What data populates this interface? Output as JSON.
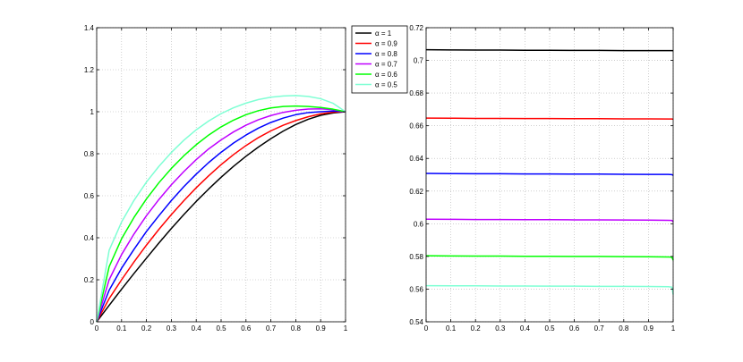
{
  "chart_data": [
    {
      "type": "line",
      "xlim": [
        0,
        1
      ],
      "ylim": [
        0,
        1.4
      ],
      "xticks": [
        "0",
        "0.1",
        "0.2",
        "0.3",
        "0.4",
        "0.5",
        "0.6",
        "0.7",
        "0.8",
        "0.9",
        "1"
      ],
      "yticks": [
        "0",
        "0.2",
        "0.4",
        "0.6",
        "0.8",
        "1",
        "1.2",
        "1.4"
      ],
      "grid": true,
      "x": [
        0,
        0.05,
        0.1,
        0.15,
        0.2,
        0.25,
        0.3,
        0.35,
        0.4,
        0.45,
        0.5,
        0.55,
        0.6,
        0.65,
        0.7,
        0.75,
        0.8,
        0.85,
        0.9,
        0.95,
        1
      ],
      "series": [
        {
          "name": "α = 1",
          "color": "#000000",
          "values": [
            0,
            0.078,
            0.155,
            0.23,
            0.303,
            0.375,
            0.444,
            0.51,
            0.573,
            0.632,
            0.688,
            0.74,
            0.788,
            0.832,
            0.872,
            0.908,
            0.939,
            0.964,
            0.983,
            0.994,
            1.0
          ]
        },
        {
          "name": "α = 0.9",
          "color": "#ff0000",
          "values": [
            0,
            0.11,
            0.2,
            0.285,
            0.365,
            0.44,
            0.51,
            0.576,
            0.638,
            0.695,
            0.748,
            0.796,
            0.839,
            0.877,
            0.909,
            0.936,
            0.958,
            0.976,
            0.99,
            0.998,
            1.0
          ]
        },
        {
          "name": "α = 0.8",
          "color": "#0000ff",
          "values": [
            0,
            0.15,
            0.255,
            0.345,
            0.43,
            0.505,
            0.577,
            0.643,
            0.703,
            0.758,
            0.807,
            0.851,
            0.889,
            0.922,
            0.949,
            0.97,
            0.986,
            0.996,
            1.0,
            1.003,
            1.0
          ]
        },
        {
          "name": "α = 0.7",
          "color": "#bf00ff",
          "values": [
            0,
            0.2,
            0.32,
            0.418,
            0.505,
            0.582,
            0.652,
            0.715,
            0.772,
            0.823,
            0.866,
            0.904,
            0.936,
            0.962,
            0.982,
            0.997,
            1.007,
            1.013,
            1.014,
            1.01,
            1.0
          ]
        },
        {
          "name": "α = 0.6",
          "color": "#00ff00",
          "values": [
            0,
            0.262,
            0.395,
            0.497,
            0.585,
            0.662,
            0.73,
            0.79,
            0.843,
            0.889,
            0.928,
            0.96,
            0.986,
            1.005,
            1.018,
            1.025,
            1.027,
            1.025,
            1.02,
            1.012,
            1.0
          ]
        },
        {
          "name": "α = 0.5",
          "color": "#7fffd4",
          "values": [
            0,
            0.34,
            0.475,
            0.578,
            0.665,
            0.74,
            0.806,
            0.864,
            0.914,
            0.956,
            0.991,
            1.019,
            1.041,
            1.058,
            1.069,
            1.075,
            1.077,
            1.073,
            1.062,
            1.04,
            1.0
          ]
        }
      ],
      "legend_position": "top-right"
    },
    {
      "type": "line",
      "xlim": [
        0,
        1
      ],
      "ylim": [
        0.54,
        0.72
      ],
      "xticks": [
        "0",
        "0.1",
        "0.2",
        "0.3",
        "0.4",
        "0.5",
        "0.6",
        "0.7",
        "0.8",
        "0.9",
        "1"
      ],
      "yticks": [
        "0.54",
        "0.56",
        "0.58",
        "0.6",
        "0.62",
        "0.64",
        "0.66",
        "0.68",
        "0.7",
        "0.72"
      ],
      "grid": true,
      "x": [
        0,
        0.1,
        0.2,
        0.3,
        0.4,
        0.5,
        0.6,
        0.7,
        0.8,
        0.9,
        0.98,
        0.995,
        1
      ],
      "series": [
        {
          "name": "α = 1",
          "color": "#000000",
          "values": [
            0.7065,
            0.7064,
            0.7063,
            0.7063,
            0.7062,
            0.7062,
            0.7061,
            0.7061,
            0.706,
            0.706,
            0.706,
            0.706,
            0.7059
          ]
        },
        {
          "name": "α = 0.9",
          "color": "#ff0000",
          "values": [
            0.6647,
            0.6646,
            0.6645,
            0.6645,
            0.6644,
            0.6644,
            0.6643,
            0.6643,
            0.6642,
            0.6642,
            0.6641,
            0.6641,
            0.664
          ]
        },
        {
          "name": "α = 0.8",
          "color": "#0000ff",
          "values": [
            0.6308,
            0.6307,
            0.6306,
            0.6306,
            0.6305,
            0.6305,
            0.6304,
            0.6304,
            0.6303,
            0.6302,
            0.6302,
            0.6301,
            0.6296
          ]
        },
        {
          "name": "α = 0.7",
          "color": "#bf00ff",
          "values": [
            0.6028,
            0.6027,
            0.6026,
            0.6026,
            0.6025,
            0.6025,
            0.6024,
            0.6024,
            0.6023,
            0.6022,
            0.6021,
            0.602,
            0.6012
          ]
        },
        {
          "name": "α = 0.6",
          "color": "#00ff00",
          "values": [
            0.5804,
            0.5803,
            0.5802,
            0.5802,
            0.5801,
            0.5801,
            0.58,
            0.58,
            0.5799,
            0.5798,
            0.5797,
            0.5795,
            0.5776
          ]
        },
        {
          "name": "α = 0.5",
          "color": "#7fffd4",
          "values": [
            0.5621,
            0.562,
            0.562,
            0.5619,
            0.5619,
            0.5618,
            0.5618,
            0.5617,
            0.5617,
            0.5616,
            0.5615,
            0.5612,
            0.5567
          ]
        }
      ]
    }
  ]
}
